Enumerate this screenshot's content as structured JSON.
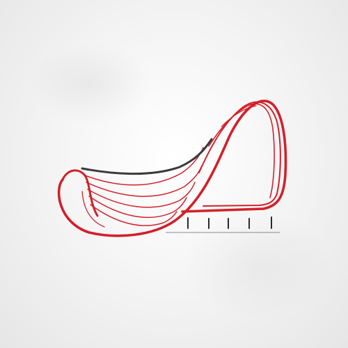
{
  "emblem": {
    "icon": "architectural-wave-building-logo-icon",
    "accent_color": "#d2202a",
    "dark_color": "#3a3a3a",
    "base_line_color": "#8a8a8a",
    "pillar_color": "#2a2a2a"
  }
}
